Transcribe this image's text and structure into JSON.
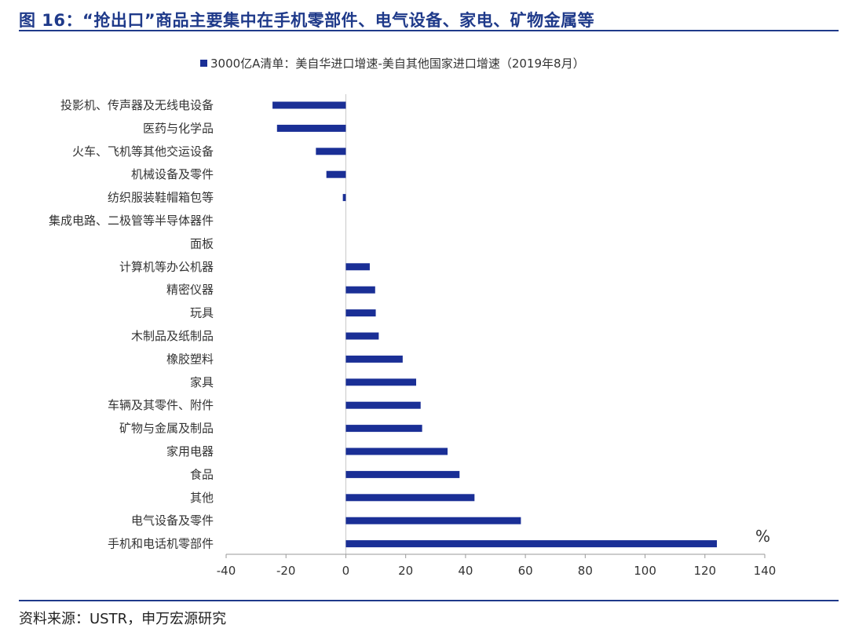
{
  "header": {
    "title": "图 16：“抢出口”商品主要集中在手机零部件、电气设备、家电、矿物金属等"
  },
  "footer": {
    "source": "资料来源：USTR，申万宏源研究"
  },
  "chart_data": {
    "type": "bar",
    "orientation": "horizontal",
    "title": "",
    "xlabel": "",
    "ylabel": "",
    "unit": "%",
    "legend_position": "top-center",
    "grid": false,
    "xlim": [
      -40,
      140
    ],
    "xticks": [
      -40,
      -20,
      0,
      20,
      40,
      60,
      80,
      100,
      120,
      140
    ],
    "categories": [
      "投影机、传声器及无线电设备",
      "医药与化学品",
      "火车、飞机等其他交运设备",
      "机械设备及零件",
      "纺织服装鞋帽箱包等",
      "集成电路、二极管等半导体器件",
      "面板",
      "计算机等办公机器",
      "精密仪器",
      "玩具",
      "木制品及纸制品",
      "橡胶塑料",
      "家具",
      "车辆及其零件、附件",
      "矿物与金属及制品",
      "家用电器",
      "食品",
      "其他",
      "电气设备及零件",
      "手机和电话机零部件"
    ],
    "series": [
      {
        "name": "3000亿A清单：美自华进口增速-美自其他国家进口增速（2019年8月）",
        "color": "#1a2f96",
        "values": [
          -24.5,
          -23,
          -10,
          -6.5,
          -1,
          0,
          0,
          8,
          9.8,
          10,
          11,
          19,
          23.5,
          25,
          25.5,
          34,
          38,
          43,
          58.5,
          124
        ]
      }
    ]
  }
}
